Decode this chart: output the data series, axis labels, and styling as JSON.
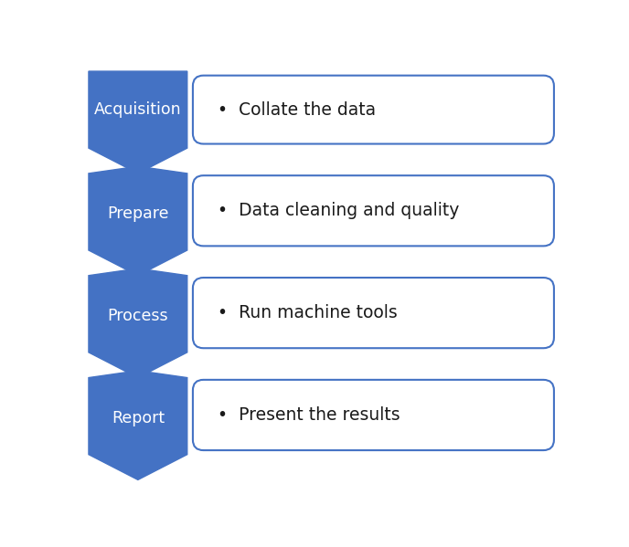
{
  "steps": [
    {
      "label": "Acquisition",
      "bullet": "Collate the data"
    },
    {
      "label": "Prepare",
      "bullet": "Data cleaning and quality"
    },
    {
      "label": "Process",
      "bullet": "Run machine tools"
    },
    {
      "label": "Report",
      "bullet": "Present the results"
    }
  ],
  "arrow_color": "#4472C4",
  "box_border_color": "#4472C4",
  "box_fill_color": "#FFFFFF",
  "label_color": "#FFFFFF",
  "bullet_color": "#1A1A1A",
  "background_color": "#FFFFFF",
  "label_fontsize": 12.5,
  "bullet_fontsize": 13.5,
  "fig_width": 6.88,
  "fig_height": 5.99
}
